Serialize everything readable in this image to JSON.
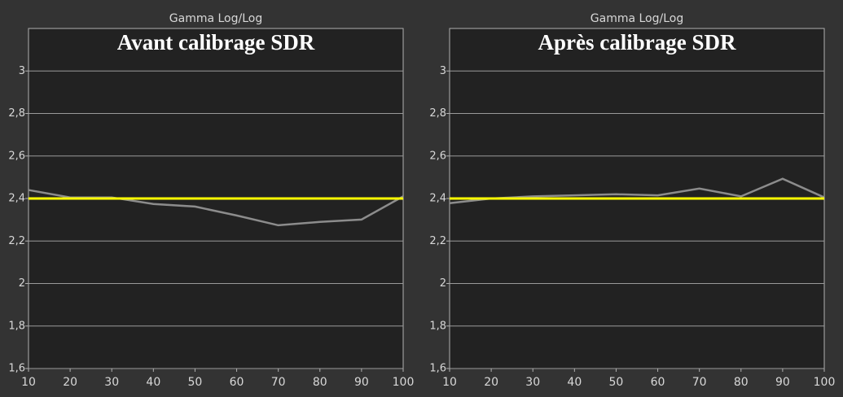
{
  "chart_data": [
    {
      "type": "line",
      "title": "Gamma Log/Log",
      "subtitle": "Avant calibrage SDR",
      "x": [
        10,
        20,
        30,
        40,
        50,
        60,
        70,
        80,
        90,
        100
      ],
      "series": [
        {
          "color": "#8c8c8c",
          "values": [
            2.44,
            2.405,
            2.405,
            2.374,
            2.362,
            2.32,
            2.274,
            2.29,
            2.301,
            2.41
          ]
        },
        {
          "color": "#ffff00",
          "values": [
            2.4,
            2.4,
            2.4,
            2.4,
            2.4,
            2.4,
            2.4,
            2.4,
            2.4,
            2.4
          ]
        }
      ],
      "xlim": [
        10,
        100
      ],
      "xticks": [
        10,
        20,
        30,
        40,
        50,
        60,
        70,
        80,
        90,
        100
      ],
      "ylim": [
        1.6,
        3.2
      ],
      "yticks": [
        {
          "value": 1.6,
          "label": "1,6"
        },
        {
          "value": 1.8,
          "label": "1,8"
        },
        2,
        {
          "value": 2.2,
          "label": "2,2"
        },
        {
          "value": 2.4,
          "label": "2,4"
        },
        {
          "value": 2.6,
          "label": "2,6"
        },
        {
          "value": 2.8,
          "label": "2,8"
        },
        3
      ],
      "grid": true
    },
    {
      "type": "line",
      "title": "Gamma Log/Log",
      "subtitle": "Après calibrage SDR",
      "x": [
        10,
        20,
        30,
        40,
        50,
        60,
        70,
        80,
        90,
        100
      ],
      "series": [
        {
          "color": "#8c8c8c",
          "values": [
            2.378,
            2.4,
            2.41,
            2.415,
            2.42,
            2.415,
            2.447,
            2.41,
            2.493,
            2.405
          ]
        },
        {
          "color": "#ffff00",
          "values": [
            2.4,
            2.4,
            2.4,
            2.4,
            2.4,
            2.4,
            2.4,
            2.4,
            2.4,
            2.4
          ]
        }
      ],
      "xlim": [
        10,
        100
      ],
      "xticks": [
        10,
        20,
        30,
        40,
        50,
        60,
        70,
        80,
        90,
        100
      ],
      "ylim": [
        1.6,
        3.2
      ],
      "yticks": [
        {
          "value": 1.6,
          "label": "1,6"
        },
        {
          "value": 1.8,
          "label": "1,8"
        },
        2,
        {
          "value": 2.2,
          "label": "2,2"
        },
        {
          "value": 2.4,
          "label": "2,4"
        },
        {
          "value": 2.6,
          "label": "2,6"
        },
        {
          "value": 2.8,
          "label": "2,8"
        },
        3
      ],
      "grid": true
    }
  ]
}
